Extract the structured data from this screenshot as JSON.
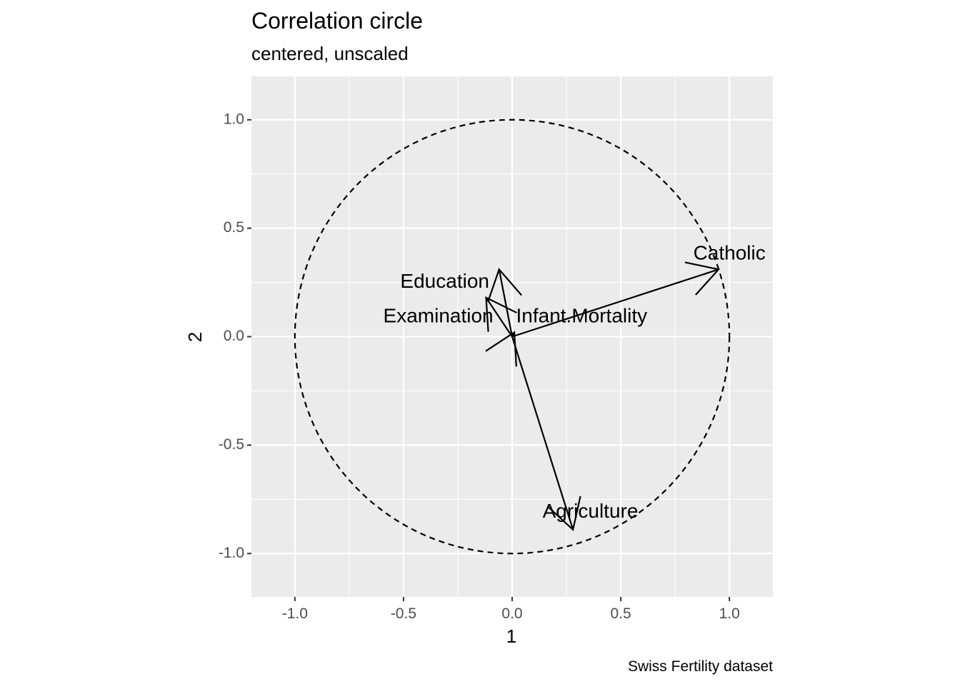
{
  "chart_data": {
    "type": "scatter",
    "title": "Correlation circle",
    "subtitle": "centered, unscaled",
    "caption": "Swiss Fertility dataset",
    "xlabel": "1",
    "ylabel": "2",
    "xlim": [
      -1.2,
      1.2
    ],
    "ylim": [
      -1.2,
      1.2
    ],
    "grid": true,
    "panel_background": "#ebebeb",
    "grid_color": "#ffffff",
    "x_ticks": [
      {
        "value": -1.0,
        "label": "-1.0"
      },
      {
        "value": -0.5,
        "label": "-0.5"
      },
      {
        "value": 0.0,
        "label": "0.0"
      },
      {
        "value": 0.5,
        "label": "0.5"
      },
      {
        "value": 1.0,
        "label": "1.0"
      }
    ],
    "y_ticks": [
      {
        "value": 1.0,
        "label": "1.0"
      },
      {
        "value": 0.5,
        "label": "0.5"
      },
      {
        "value": 0.0,
        "label": "0.0"
      },
      {
        "value": -0.5,
        "label": "-0.5"
      },
      {
        "value": -1.0,
        "label": "-1.0"
      }
    ],
    "unit_circle": {
      "radius": 1.0,
      "style": "dashed"
    },
    "vectors": [
      {
        "name": "Agriculture",
        "x": 0.28,
        "y": -0.89,
        "label_x": 0.36,
        "label_y": -0.81
      },
      {
        "name": "Examination",
        "x": -0.12,
        "y": 0.18,
        "label_x": -0.34,
        "label_y": 0.09
      },
      {
        "name": "Education",
        "x": -0.06,
        "y": 0.31,
        "label_x": -0.31,
        "label_y": 0.25
      },
      {
        "name": "Catholic",
        "x": 0.95,
        "y": 0.31,
        "label_x": 1.0,
        "label_y": 0.38
      },
      {
        "name": "Infant.Mortality",
        "x": 0.01,
        "y": 0.02,
        "label_x": 0.32,
        "label_y": 0.09
      }
    ]
  }
}
